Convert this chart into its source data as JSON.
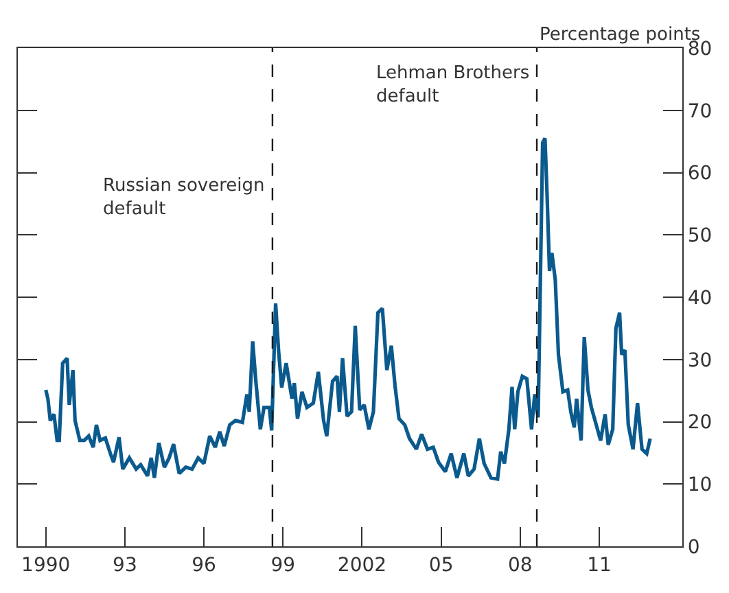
{
  "chart_data": {
    "type": "line",
    "ylabel": "Percentage points",
    "x": [
      1990.0,
      1990.08,
      1990.17,
      1990.31,
      1990.43,
      1990.51,
      1990.64,
      1990.81,
      1990.89,
      1991.03,
      1991.11,
      1991.29,
      1991.46,
      1991.63,
      1991.8,
      1991.92,
      1992.06,
      1992.26,
      1992.45,
      1992.57,
      1992.78,
      1992.92,
      1993.17,
      1993.43,
      1993.6,
      1993.86,
      1994.0,
      1994.12,
      1994.29,
      1994.5,
      1994.68,
      1994.85,
      1995.06,
      1995.31,
      1995.55,
      1995.78,
      1996.0,
      1996.22,
      1996.43,
      1996.6,
      1996.77,
      1996.98,
      1997.2,
      1997.46,
      1997.63,
      1997.72,
      1997.85,
      1997.97,
      1998.14,
      1998.28,
      1998.48,
      1998.57,
      1998.72,
      1998.83,
      1998.95,
      1999.12,
      1999.34,
      1999.43,
      1999.55,
      1999.72,
      1999.91,
      2000.15,
      2000.34,
      2000.54,
      2000.66,
      2000.88,
      2001.05,
      2001.14,
      2001.26,
      2001.43,
      2001.6,
      2001.74,
      2001.91,
      2002.08,
      2002.26,
      2002.43,
      2002.6,
      2002.77,
      2002.94,
      2003.11,
      2003.25,
      2003.4,
      2003.62,
      2003.8,
      2004.06,
      2004.26,
      2004.48,
      2004.7,
      2004.9,
      2005.16,
      2005.38,
      2005.6,
      2005.86,
      2006.03,
      2006.25,
      2006.45,
      2006.63,
      2006.89,
      2007.14,
      2007.26,
      2007.4,
      2007.57,
      2007.69,
      2007.79,
      2007.91,
      2008.08,
      2008.25,
      2008.43,
      2008.55,
      2008.68,
      2008.85,
      2008.94,
      2009.02,
      2009.11,
      2009.2,
      2009.33,
      2009.45,
      2009.62,
      2009.8,
      2009.92,
      2010.05,
      2010.14,
      2010.31,
      2010.43,
      2010.57,
      2010.7,
      2010.91,
      2011.05,
      2011.22,
      2011.34,
      2011.51,
      2011.63,
      2011.77,
      2011.85,
      2011.97,
      2012.1,
      2012.28,
      2012.45,
      2012.62,
      2012.8,
      2012.93
    ],
    "series": [
      {
        "color": "#0b5a8e",
        "values": [
          25.1,
          23.7,
          20.2,
          21.2,
          17.0,
          17.0,
          29.4,
          30.2,
          22.7,
          28.3,
          20.2,
          17.0,
          17.0,
          17.7,
          15.9,
          19.5,
          17.0,
          17.4,
          14.9,
          13.5,
          17.5,
          12.4,
          14.2,
          12.4,
          13.1,
          11.3,
          14.2,
          11.0,
          16.6,
          12.7,
          14.2,
          16.4,
          11.7,
          12.7,
          12.4,
          14.2,
          13.3,
          17.7,
          15.9,
          18.4,
          16.1,
          19.5,
          20.2,
          19.9,
          24.4,
          21.6,
          32.9,
          26.5,
          18.8,
          22.3,
          22.3,
          18.6,
          39.0,
          31.5,
          25.5,
          29.4,
          23.7,
          26.2,
          20.5,
          24.8,
          22.3,
          23.0,
          28.0,
          20.2,
          17.7,
          26.5,
          27.3,
          21.6,
          30.2,
          20.9,
          21.6,
          35.4,
          21.9,
          22.7,
          18.8,
          21.6,
          37.5,
          38.2,
          28.3,
          32.2,
          25.8,
          20.5,
          19.5,
          17.3,
          15.6,
          18.0,
          15.6,
          15.9,
          13.5,
          12.0,
          14.9,
          11.0,
          14.9,
          11.3,
          12.4,
          17.3,
          13.3,
          11.0,
          10.8,
          15.2,
          13.3,
          18.8,
          25.6,
          18.8,
          24.8,
          27.3,
          26.9,
          18.8,
          24.4,
          20.7,
          64.8,
          65.5,
          56.3,
          44.2,
          47.1,
          42.8,
          30.8,
          24.8,
          25.1,
          21.6,
          19.1,
          23.7,
          17.0,
          33.6,
          25.1,
          22.3,
          19.1,
          17.0,
          21.2,
          16.3,
          18.8,
          35.0,
          37.5,
          30.8,
          31.5,
          19.5,
          15.6,
          23.0,
          15.6,
          14.9,
          17.3
        ]
      }
    ],
    "xlim": [
      1988.94,
      2014.15
    ],
    "xticks": [
      {
        "value": 1990,
        "label": "1990"
      },
      {
        "value": 1993,
        "label": "93"
      },
      {
        "value": 1996,
        "label": "96"
      },
      {
        "value": 1999,
        "label": "99"
      },
      {
        "value": 2002,
        "label": "2002"
      },
      {
        "value": 2005,
        "label": "05"
      },
      {
        "value": 2008,
        "label": "08"
      },
      {
        "value": 2011,
        "label": "11"
      }
    ],
    "ylim": [
      0,
      80
    ],
    "yticks": [
      0,
      10,
      20,
      30,
      40,
      50,
      60,
      70,
      80
    ],
    "ref_lines": [
      {
        "axis": "x",
        "value": 1998.6,
        "color": "#1a1a1a",
        "line_style": "dashed"
      },
      {
        "axis": "x",
        "value": 2008.63,
        "color": "#1a1a1a",
        "line_style": "dashed"
      }
    ],
    "annotations": [
      {
        "text": "Russian sovereign\ndefault",
        "x": 1998.6,
        "y": 56
      },
      {
        "text": "Lehman Brothers\ndefault",
        "x": 2008.63,
        "y": 74
      }
    ],
    "line_style": "solid",
    "marker": "none"
  }
}
